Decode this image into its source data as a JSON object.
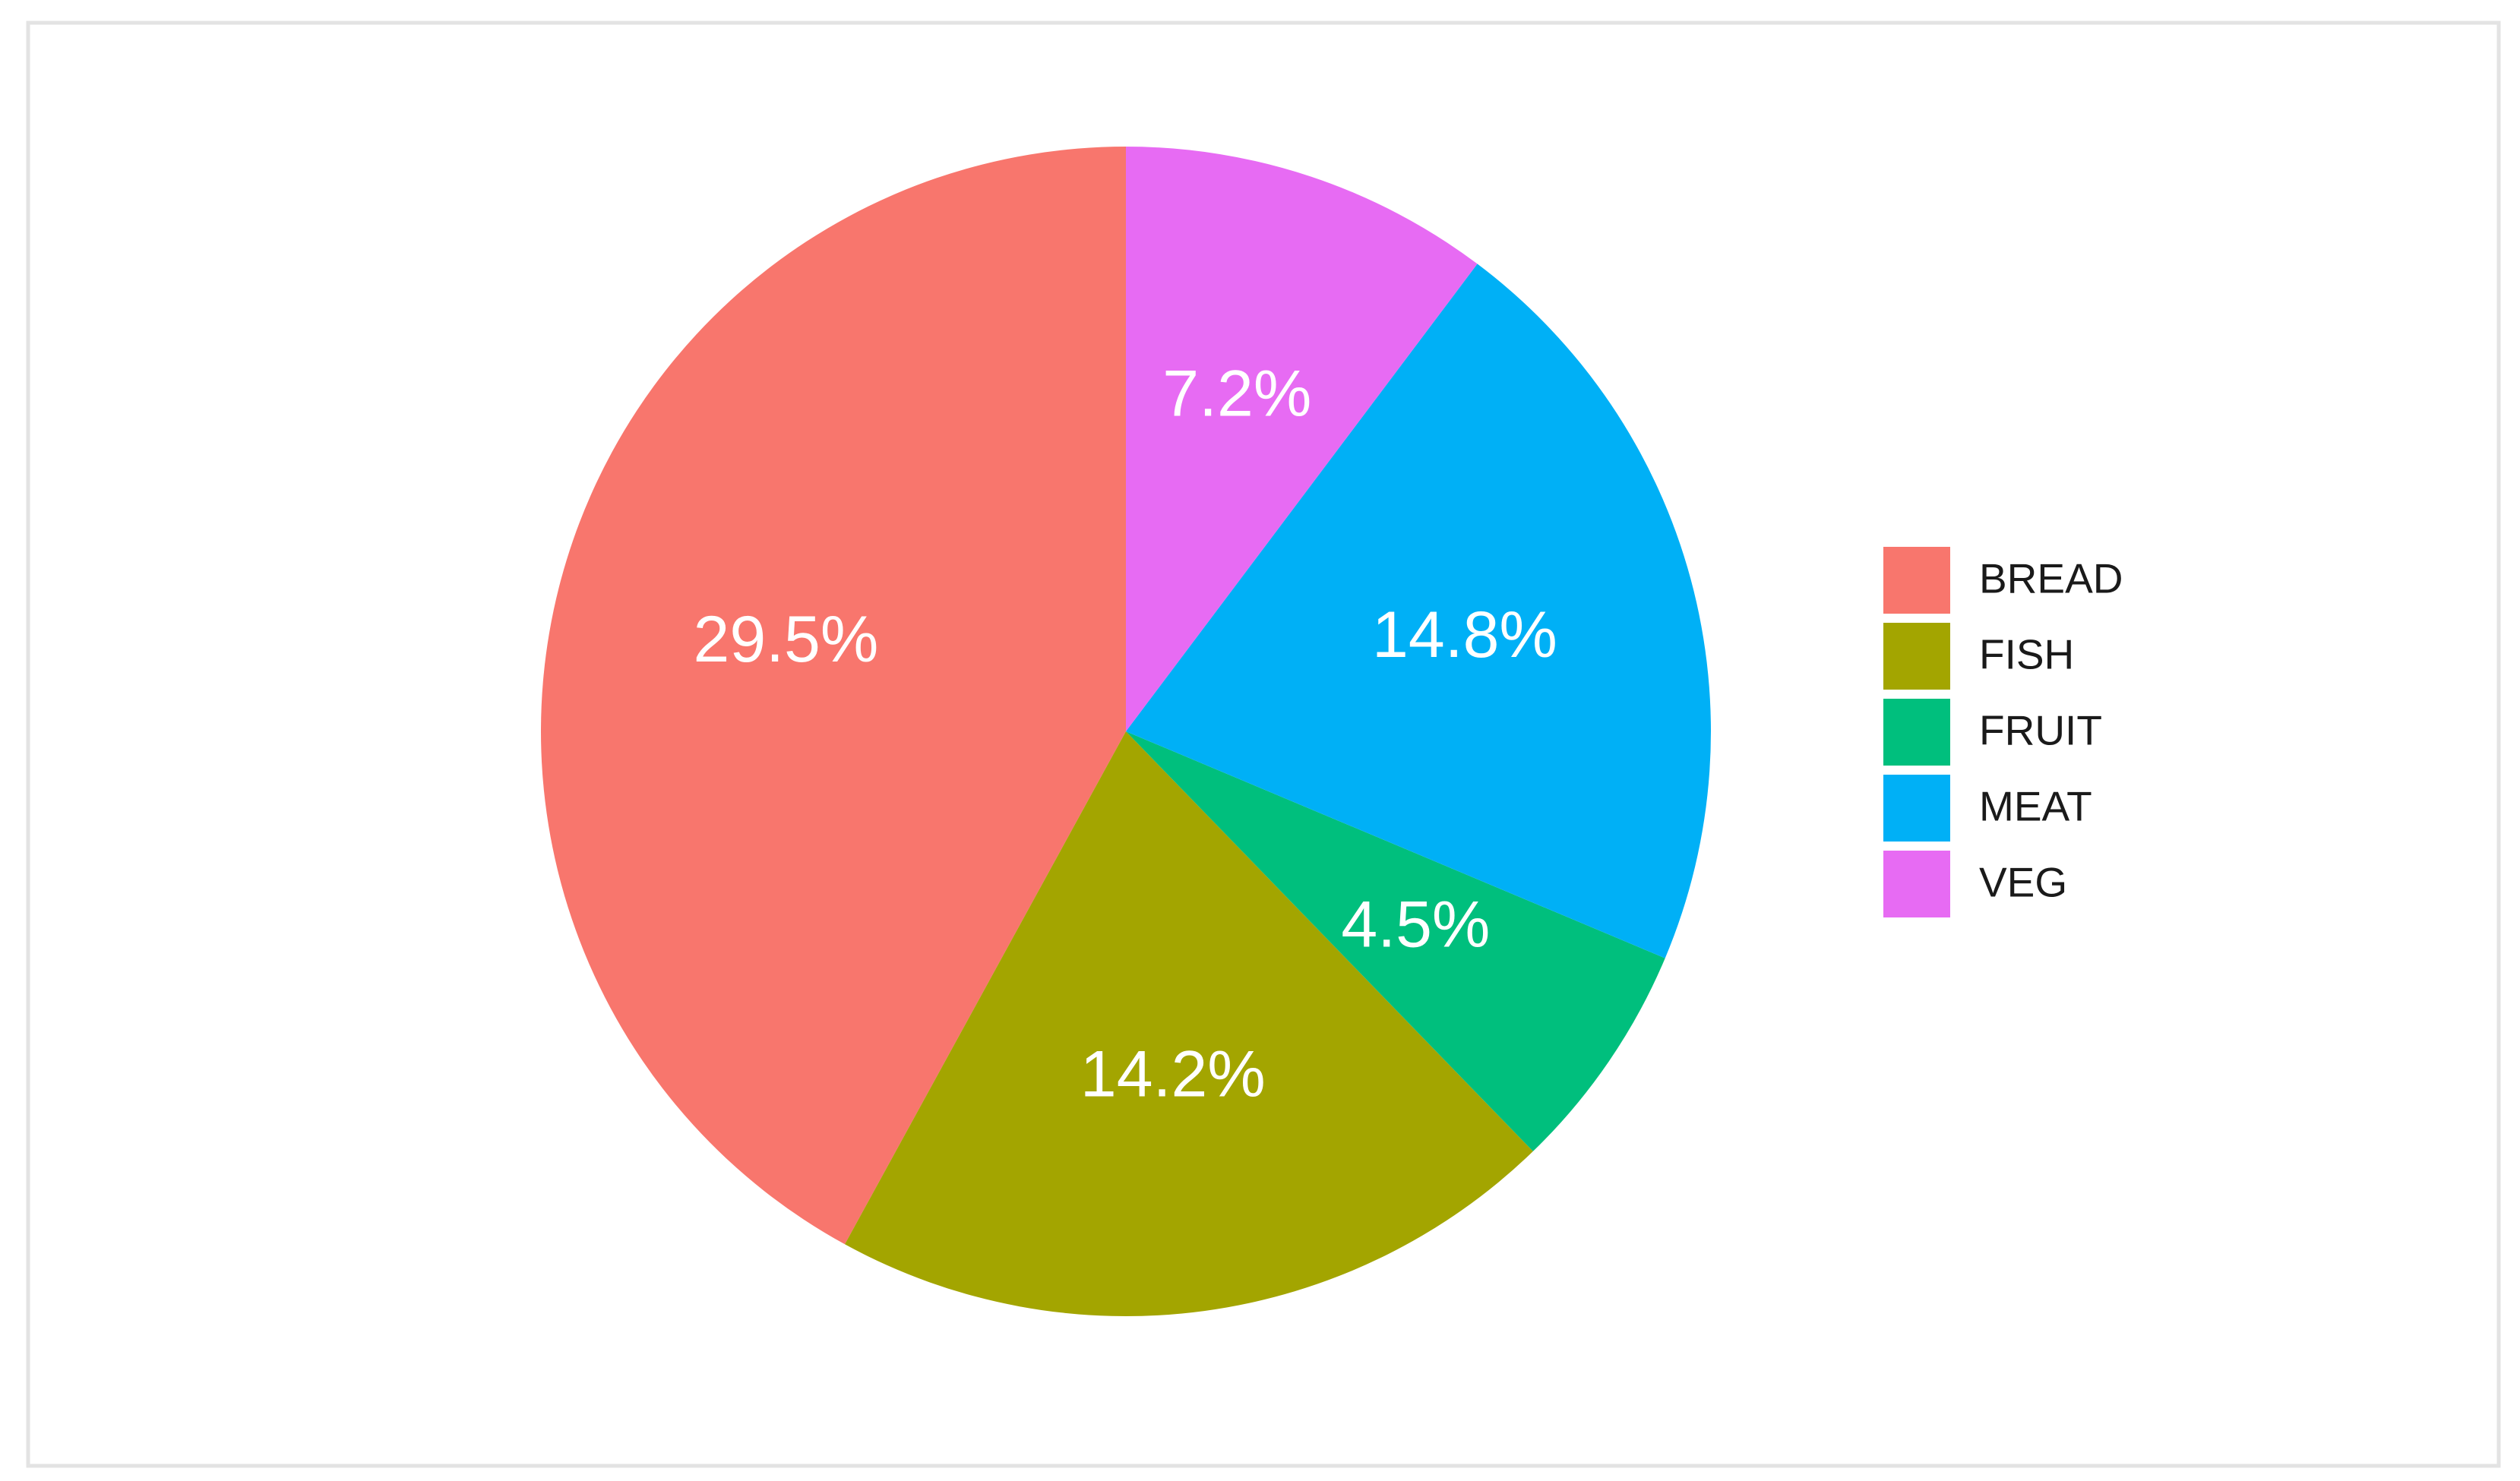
{
  "chart_data": {
    "type": "pie",
    "categories": [
      "BREAD",
      "FISH",
      "FRUIT",
      "MEAT",
      "VEG"
    ],
    "values": [
      29.5,
      14.2,
      4.5,
      14.8,
      7.2
    ],
    "value_labels": [
      "29.5%",
      "14.2%",
      "4.5%",
      "14.8%",
      "7.2%"
    ],
    "colors": [
      "#F8766D",
      "#A3A500",
      "#00BF7D",
      "#00B0F6",
      "#E76BF3"
    ],
    "legend": "right"
  }
}
